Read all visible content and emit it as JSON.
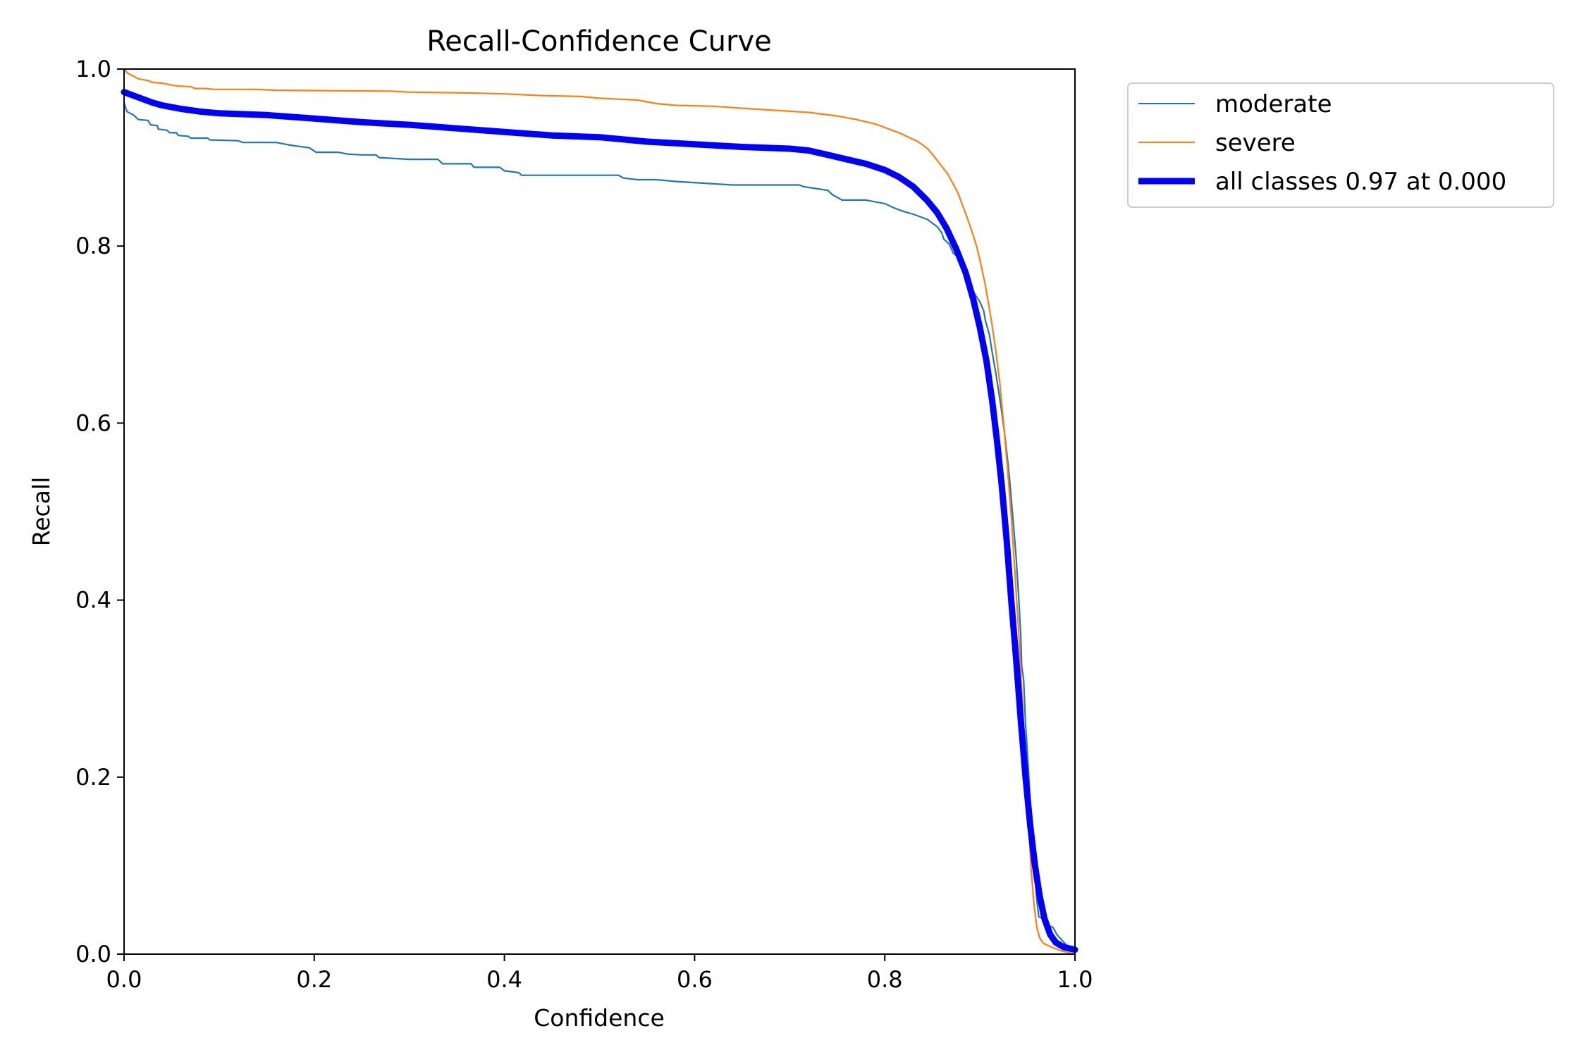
{
  "chart_data": {
    "type": "line",
    "title": "Recall-Confidence Curve",
    "xlabel": "Confidence",
    "ylabel": "Recall",
    "xlim": [
      0,
      1
    ],
    "ylim": [
      0,
      1
    ],
    "grid": false,
    "legend_position": "outside-top-right",
    "x_ticks": [
      0.0,
      0.2,
      0.4,
      0.6,
      0.8,
      1.0
    ],
    "x_tick_labels": [
      "0.0",
      "0.2",
      "0.4",
      "0.6",
      "0.8",
      "1.0"
    ],
    "y_ticks": [
      0.0,
      0.2,
      0.4,
      0.6,
      0.8,
      1.0
    ],
    "y_tick_labels": [
      "0.0",
      "0.2",
      "0.4",
      "0.6",
      "0.8",
      "1.0"
    ],
    "series": [
      {
        "name": "moderate",
        "color": "#1f77b4",
        "stroke": "thin",
        "points": [
          [
            0.0,
            0.962
          ],
          [
            0.003,
            0.952
          ],
          [
            0.01,
            0.948
          ],
          [
            0.015,
            0.943
          ],
          [
            0.025,
            0.942
          ],
          [
            0.028,
            0.937
          ],
          [
            0.035,
            0.936
          ],
          [
            0.036,
            0.932
          ],
          [
            0.045,
            0.931
          ],
          [
            0.048,
            0.928
          ],
          [
            0.055,
            0.928
          ],
          [
            0.057,
            0.925
          ],
          [
            0.068,
            0.924
          ],
          [
            0.07,
            0.922
          ],
          [
            0.088,
            0.922
          ],
          [
            0.09,
            0.92
          ],
          [
            0.12,
            0.919
          ],
          [
            0.125,
            0.917
          ],
          [
            0.16,
            0.917
          ],
          [
            0.175,
            0.914
          ],
          [
            0.195,
            0.911
          ],
          [
            0.202,
            0.906
          ],
          [
            0.225,
            0.906
          ],
          [
            0.235,
            0.904
          ],
          [
            0.25,
            0.903
          ],
          [
            0.265,
            0.903
          ],
          [
            0.268,
            0.9
          ],
          [
            0.3,
            0.898
          ],
          [
            0.33,
            0.898
          ],
          [
            0.335,
            0.893
          ],
          [
            0.365,
            0.893
          ],
          [
            0.368,
            0.889
          ],
          [
            0.395,
            0.889
          ],
          [
            0.4,
            0.885
          ],
          [
            0.415,
            0.883
          ],
          [
            0.418,
            0.88
          ],
          [
            0.45,
            0.88
          ],
          [
            0.52,
            0.88
          ],
          [
            0.525,
            0.877
          ],
          [
            0.54,
            0.875
          ],
          [
            0.56,
            0.875
          ],
          [
            0.58,
            0.873
          ],
          [
            0.61,
            0.871
          ],
          [
            0.64,
            0.869
          ],
          [
            0.71,
            0.869
          ],
          [
            0.715,
            0.867
          ],
          [
            0.74,
            0.863
          ],
          [
            0.745,
            0.858
          ],
          [
            0.75,
            0.855
          ],
          [
            0.755,
            0.852
          ],
          [
            0.78,
            0.852
          ],
          [
            0.8,
            0.848
          ],
          [
            0.81,
            0.843
          ],
          [
            0.82,
            0.839
          ],
          [
            0.83,
            0.836
          ],
          [
            0.845,
            0.83
          ],
          [
            0.855,
            0.822
          ],
          [
            0.86,
            0.815
          ],
          [
            0.862,
            0.808
          ],
          [
            0.868,
            0.802
          ],
          [
            0.872,
            0.792
          ],
          [
            0.88,
            0.785
          ],
          [
            0.883,
            0.775
          ],
          [
            0.888,
            0.767
          ],
          [
            0.89,
            0.756
          ],
          [
            0.895,
            0.745
          ],
          [
            0.9,
            0.737
          ],
          [
            0.904,
            0.727
          ],
          [
            0.906,
            0.715
          ],
          [
            0.91,
            0.7
          ],
          [
            0.913,
            0.68
          ],
          [
            0.917,
            0.655
          ],
          [
            0.922,
            0.62
          ],
          [
            0.927,
            0.58
          ],
          [
            0.931,
            0.54
          ],
          [
            0.935,
            0.49
          ],
          [
            0.938,
            0.45
          ],
          [
            0.941,
            0.4
          ],
          [
            0.943,
            0.36
          ],
          [
            0.944,
            0.325
          ],
          [
            0.946,
            0.31
          ],
          [
            0.948,
            0.26
          ],
          [
            0.951,
            0.21
          ],
          [
            0.954,
            0.15
          ],
          [
            0.957,
            0.1
          ],
          [
            0.96,
            0.06
          ],
          [
            0.962,
            0.042
          ],
          [
            0.968,
            0.04
          ],
          [
            0.971,
            0.033
          ],
          [
            0.977,
            0.03
          ],
          [
            0.981,
            0.022
          ],
          [
            0.987,
            0.015
          ],
          [
            0.993,
            0.008
          ],
          [
            1.0,
            0.002
          ]
        ]
      },
      {
        "name": "severe",
        "color": "#ff7f0e",
        "stroke": "thin",
        "points": [
          [
            0.0,
            1.0
          ],
          [
            0.004,
            0.995
          ],
          [
            0.01,
            0.992
          ],
          [
            0.015,
            0.989
          ],
          [
            0.025,
            0.987
          ],
          [
            0.03,
            0.985
          ],
          [
            0.04,
            0.984
          ],
          [
            0.055,
            0.981
          ],
          [
            0.07,
            0.98
          ],
          [
            0.075,
            0.978
          ],
          [
            0.085,
            0.978
          ],
          [
            0.095,
            0.977
          ],
          [
            0.14,
            0.977
          ],
          [
            0.16,
            0.976
          ],
          [
            0.28,
            0.975
          ],
          [
            0.3,
            0.974
          ],
          [
            0.36,
            0.973
          ],
          [
            0.4,
            0.972
          ],
          [
            0.44,
            0.97
          ],
          [
            0.48,
            0.969
          ],
          [
            0.5,
            0.967
          ],
          [
            0.54,
            0.965
          ],
          [
            0.56,
            0.961
          ],
          [
            0.58,
            0.959
          ],
          [
            0.62,
            0.958
          ],
          [
            0.66,
            0.955
          ],
          [
            0.69,
            0.953
          ],
          [
            0.72,
            0.951
          ],
          [
            0.75,
            0.947
          ],
          [
            0.77,
            0.943
          ],
          [
            0.79,
            0.938
          ],
          [
            0.8,
            0.934
          ],
          [
            0.815,
            0.928
          ],
          [
            0.825,
            0.923
          ],
          [
            0.835,
            0.918
          ],
          [
            0.845,
            0.91
          ],
          [
            0.85,
            0.904
          ],
          [
            0.855,
            0.897
          ],
          [
            0.86,
            0.89
          ],
          [
            0.866,
            0.882
          ],
          [
            0.872,
            0.87
          ],
          [
            0.877,
            0.86
          ],
          [
            0.881,
            0.848
          ],
          [
            0.885,
            0.837
          ],
          [
            0.889,
            0.825
          ],
          [
            0.893,
            0.812
          ],
          [
            0.897,
            0.798
          ],
          [
            0.901,
            0.78
          ],
          [
            0.905,
            0.76
          ],
          [
            0.909,
            0.736
          ],
          [
            0.913,
            0.71
          ],
          [
            0.917,
            0.68
          ],
          [
            0.921,
            0.645
          ],
          [
            0.925,
            0.6
          ],
          [
            0.929,
            0.55
          ],
          [
            0.933,
            0.495
          ],
          [
            0.937,
            0.43
          ],
          [
            0.941,
            0.36
          ],
          [
            0.945,
            0.28
          ],
          [
            0.948,
            0.21
          ],
          [
            0.951,
            0.15
          ],
          [
            0.954,
            0.095
          ],
          [
            0.957,
            0.055
          ],
          [
            0.96,
            0.03
          ],
          [
            0.963,
            0.018
          ],
          [
            0.967,
            0.012
          ],
          [
            0.975,
            0.008
          ],
          [
            0.985,
            0.004
          ],
          [
            1.0,
            0.0
          ]
        ]
      },
      {
        "name": "all classes 0.97 at 0.000",
        "color": "#0000ff",
        "stroke": "thick",
        "points": [
          [
            0.0,
            0.974
          ],
          [
            0.01,
            0.97
          ],
          [
            0.02,
            0.966
          ],
          [
            0.03,
            0.962
          ],
          [
            0.04,
            0.959
          ],
          [
            0.05,
            0.957
          ],
          [
            0.06,
            0.955
          ],
          [
            0.08,
            0.952
          ],
          [
            0.1,
            0.95
          ],
          [
            0.15,
            0.948
          ],
          [
            0.2,
            0.944
          ],
          [
            0.25,
            0.94
          ],
          [
            0.3,
            0.937
          ],
          [
            0.35,
            0.933
          ],
          [
            0.4,
            0.929
          ],
          [
            0.45,
            0.925
          ],
          [
            0.5,
            0.923
          ],
          [
            0.55,
            0.918
          ],
          [
            0.6,
            0.915
          ],
          [
            0.65,
            0.912
          ],
          [
            0.7,
            0.91
          ],
          [
            0.72,
            0.908
          ],
          [
            0.74,
            0.903
          ],
          [
            0.76,
            0.898
          ],
          [
            0.78,
            0.893
          ],
          [
            0.8,
            0.886
          ],
          [
            0.815,
            0.878
          ],
          [
            0.83,
            0.867
          ],
          [
            0.845,
            0.851
          ],
          [
            0.855,
            0.838
          ],
          [
            0.865,
            0.82
          ],
          [
            0.875,
            0.797
          ],
          [
            0.885,
            0.77
          ],
          [
            0.893,
            0.74
          ],
          [
            0.9,
            0.708
          ],
          [
            0.907,
            0.67
          ],
          [
            0.913,
            0.625
          ],
          [
            0.918,
            0.58
          ],
          [
            0.923,
            0.53
          ],
          [
            0.928,
            0.47
          ],
          [
            0.933,
            0.4
          ],
          [
            0.938,
            0.335
          ],
          [
            0.943,
            0.265
          ],
          [
            0.948,
            0.2
          ],
          [
            0.953,
            0.145
          ],
          [
            0.958,
            0.1
          ],
          [
            0.963,
            0.065
          ],
          [
            0.968,
            0.04
          ],
          [
            0.974,
            0.022
          ],
          [
            0.98,
            0.013
          ],
          [
            0.988,
            0.008
          ],
          [
            1.0,
            0.005
          ]
        ]
      }
    ]
  }
}
